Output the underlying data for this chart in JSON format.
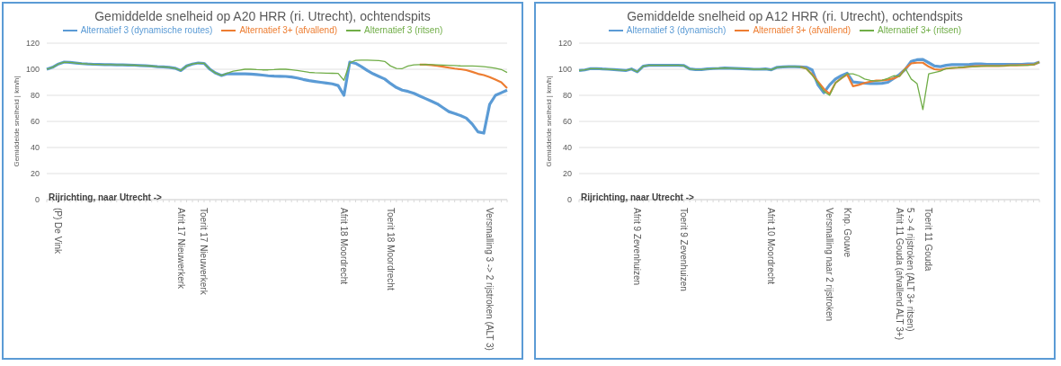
{
  "chart_data": [
    {
      "type": "line",
      "title": "Gemiddelde snelheid op A20 HRR (ri. Utrecht), ochtendspits",
      "ylabel": "Gemiddelde snelheid | km/h|",
      "annotations": [
        "Rijrichting, naar Utrecht ->"
      ],
      "categories": [
        null,
        null,
        "(P) De Vink",
        null,
        null,
        null,
        null,
        null,
        null,
        null,
        null,
        null,
        null,
        null,
        null,
        null,
        null,
        null,
        null,
        null,
        null,
        null,
        null,
        "Afrit 17 Nieuwerkerk",
        null,
        null,
        null,
        "Toerit 17 Nieuwerkerk",
        null,
        null,
        null,
        null,
        null,
        null,
        null,
        null,
        null,
        null,
        null,
        null,
        null,
        null,
        null,
        null,
        null,
        null,
        null,
        null,
        null,
        null,
        null,
        "Afrit 18 Moordrecht",
        null,
        null,
        null,
        null,
        null,
        null,
        null,
        "Toerit 18 Moordrecht",
        null,
        null,
        null,
        null,
        null,
        null,
        null,
        null,
        null,
        null,
        null,
        null,
        null,
        null,
        null,
        null,
        "Versmalling 3 -> 2 rijstroken (ALT 3)",
        null,
        null,
        null
      ],
      "series": [
        {
          "name": "Alternatief 3 (dynamische routes)",
          "color": "#5b9bd5",
          "values": [
            100,
            101.5,
            104,
            105.5,
            105.3,
            104.8,
            104.3,
            104,
            103.8,
            103.7,
            103.6,
            103.5,
            103.4,
            103.3,
            103.2,
            103.1,
            102.9,
            102.7,
            102.4,
            102,
            101.8,
            101.5,
            100.8,
            99,
            102.5,
            104,
            104.8,
            104.5,
            100,
            97,
            95.2,
            96.5,
            96.5,
            96.5,
            96.5,
            96.3,
            96,
            95.5,
            95,
            94.7,
            94.6,
            94.5,
            94,
            93.3,
            92.2,
            91.3,
            90.6,
            90,
            89.4,
            88.8,
            87.5,
            80,
            105.5,
            104.5,
            102,
            99,
            96.5,
            94.5,
            92.5,
            89,
            86,
            84,
            83,
            81.5,
            79.5,
            77.5,
            75.5,
            73.5,
            70.5,
            67.5,
            66,
            64.5,
            62.5,
            58,
            52,
            51,
            73,
            80,
            82,
            84
          ]
        },
        {
          "name": "Alternatief 3+ (afvallend)",
          "color": "#ed7d31",
          "values": [
            null,
            null,
            null,
            null,
            null,
            null,
            null,
            null,
            null,
            null,
            null,
            null,
            null,
            null,
            null,
            null,
            null,
            null,
            null,
            null,
            null,
            null,
            null,
            null,
            null,
            null,
            null,
            null,
            null,
            null,
            null,
            null,
            null,
            null,
            null,
            null,
            null,
            null,
            null,
            null,
            null,
            null,
            null,
            null,
            null,
            null,
            null,
            null,
            null,
            null,
            null,
            null,
            null,
            null,
            null,
            null,
            null,
            null,
            null,
            null,
            null,
            null,
            null,
            null,
            103.6,
            103.5,
            103.2,
            102.6,
            102,
            101.2,
            100.5,
            100,
            99.3,
            98,
            96.5,
            95.5,
            94,
            92,
            90,
            85.5
          ]
        },
        {
          "name": "Alternatief 3 (ritsen)",
          "color": "#70ad47",
          "values": [
            100,
            101.5,
            104,
            105.5,
            105.3,
            104.8,
            104.3,
            104,
            103.8,
            103.7,
            103.6,
            103.5,
            103.4,
            103.3,
            103.2,
            103.1,
            102.9,
            102.7,
            102.4,
            102,
            101.8,
            101.5,
            100.8,
            99,
            102.5,
            104,
            104.8,
            104.5,
            100,
            97,
            95.2,
            97,
            98.5,
            99.3,
            100,
            100,
            99.7,
            99.5,
            99.5,
            99.7,
            100,
            100,
            99.5,
            99,
            98.3,
            97.6,
            97.3,
            97.2,
            97,
            96.9,
            96.8,
            91.5,
            105,
            106.8,
            107,
            107,
            106.8,
            106.6,
            106,
            102.5,
            100.6,
            100.5,
            102.5,
            103.3,
            103.6,
            103.7,
            103.6,
            103.4,
            103.2,
            103,
            102.8,
            102.6,
            102.5,
            102.5,
            102.3,
            102,
            101.5,
            100.7,
            99.8,
            97.5
          ]
        }
      ],
      "ylim": [
        0,
        120
      ],
      "yticks": [
        0,
        20,
        40,
        60,
        80,
        100,
        120
      ],
      "grid": "y",
      "legend": "top",
      "marker": "none",
      "line_style": "solid"
    },
    {
      "type": "line",
      "title": "Gemiddelde snelheid op A12 HRR (ri. Utrecht), ochtendspits",
      "ylabel": "Gemiddelde snelheid | km/h|",
      "annotations": [
        "Rijrichting, naar Utrecht ->"
      ],
      "categories": [
        null,
        null,
        null,
        null,
        null,
        null,
        null,
        null,
        null,
        null,
        "Afrit 9 Zevenhuizen",
        null,
        null,
        null,
        null,
        null,
        null,
        null,
        "Toerit 9 Zevenhuizen",
        null,
        null,
        null,
        null,
        null,
        null,
        null,
        null,
        null,
        null,
        null,
        null,
        null,
        null,
        "Afrit 10 Moordrecht",
        null,
        null,
        null,
        null,
        null,
        null,
        null,
        null,
        null,
        "Versmalling naar 2 rijstroken",
        null,
        null,
        "Knp. Gouwe",
        null,
        null,
        null,
        null,
        null,
        null,
        null,
        null,
        null,
        "5 -> 4 rijstroken (ALT 3+ ritsen)\nAfrit 11 Gouda (afvallend ALT 3+)",
        null,
        null,
        null,
        "Toerit 11 Gouda",
        null,
        null,
        null,
        null,
        null,
        null,
        null,
        null,
        null,
        null,
        null,
        null,
        null,
        null,
        null,
        null,
        null,
        null,
        null
      ],
      "series": [
        {
          "name": "Alternatief 3 (dynamisch)",
          "color": "#5b9bd5",
          "values": [
            99,
            99.5,
            100.5,
            100.5,
            100.2,
            100,
            99.8,
            99.4,
            99,
            100.2,
            98,
            102.3,
            103,
            103,
            103,
            103,
            103,
            103,
            102.8,
            100.2,
            99.8,
            99.8,
            100.2,
            100.5,
            100.7,
            101,
            100.8,
            100.6,
            100.4,
            100.2,
            100,
            100,
            100.3,
            99.6,
            101.5,
            101.8,
            102,
            102,
            101.8,
            101.5,
            99.5,
            88,
            82,
            88,
            92.5,
            95,
            97,
            90.2,
            89.8,
            89.3,
            89,
            89,
            89.2,
            90,
            93,
            96,
            100,
            106,
            107.3,
            107.5,
            105,
            102.5,
            102,
            103,
            103.5,
            103.5,
            103.5,
            103.7,
            104,
            104,
            103.8,
            103.8,
            103.8,
            103.8,
            103.8,
            103.8,
            103.8,
            104,
            104,
            105.5
          ]
        },
        {
          "name": "Alternatief 3+ (afvallend)",
          "color": "#ed7d31",
          "values": [
            null,
            null,
            null,
            null,
            null,
            null,
            null,
            null,
            null,
            null,
            null,
            null,
            null,
            null,
            null,
            null,
            null,
            null,
            null,
            null,
            null,
            null,
            null,
            null,
            null,
            null,
            null,
            null,
            null,
            null,
            null,
            null,
            null,
            null,
            null,
            null,
            null,
            null,
            101.8,
            100.5,
            96,
            90.5,
            85,
            81,
            89.5,
            93,
            96,
            87,
            88,
            89.5,
            90.5,
            91.3,
            91.5,
            92,
            93,
            95,
            100.5,
            104.5,
            105,
            105,
            102,
            100,
            99.5,
            100.5,
            101,
            101.2,
            101.5,
            102,
            102.3,
            102.5,
            102.5,
            102.5,
            102.5,
            102.7,
            103,
            103,
            103.2,
            103.3,
            103.5,
            105.5
          ]
        },
        {
          "name": "Alternatief 3+ (ritsen)",
          "color": "#70ad47",
          "values": [
            99,
            99.5,
            100.5,
            100.5,
            100.2,
            100,
            99.8,
            99.4,
            99,
            100.2,
            98,
            102.3,
            103,
            103,
            103,
            103,
            103,
            103,
            102.8,
            100.2,
            99.8,
            99.8,
            100.2,
            100.5,
            100.7,
            101,
            100.8,
            100.6,
            100.4,
            100.2,
            100,
            100,
            100.3,
            99.6,
            101.5,
            101.8,
            102,
            102,
            101.8,
            100.5,
            95.5,
            89.5,
            83,
            80,
            89.5,
            93,
            96.5,
            96.5,
            95,
            92.5,
            91.5,
            91,
            91.5,
            93,
            95,
            94.5,
            100.5,
            92.5,
            89,
            69,
            96.5,
            97.5,
            98.5,
            100.5,
            101,
            101.3,
            101.7,
            102,
            102,
            102.3,
            102.5,
            102.5,
            102.5,
            102.7,
            103,
            103,
            103,
            103,
            103.5,
            105.5
          ]
        }
      ],
      "ylim": [
        0,
        120
      ],
      "yticks": [
        0,
        20,
        40,
        60,
        80,
        100,
        120
      ],
      "grid": "y",
      "legend": "top",
      "marker": "none",
      "line_style": "solid"
    }
  ]
}
